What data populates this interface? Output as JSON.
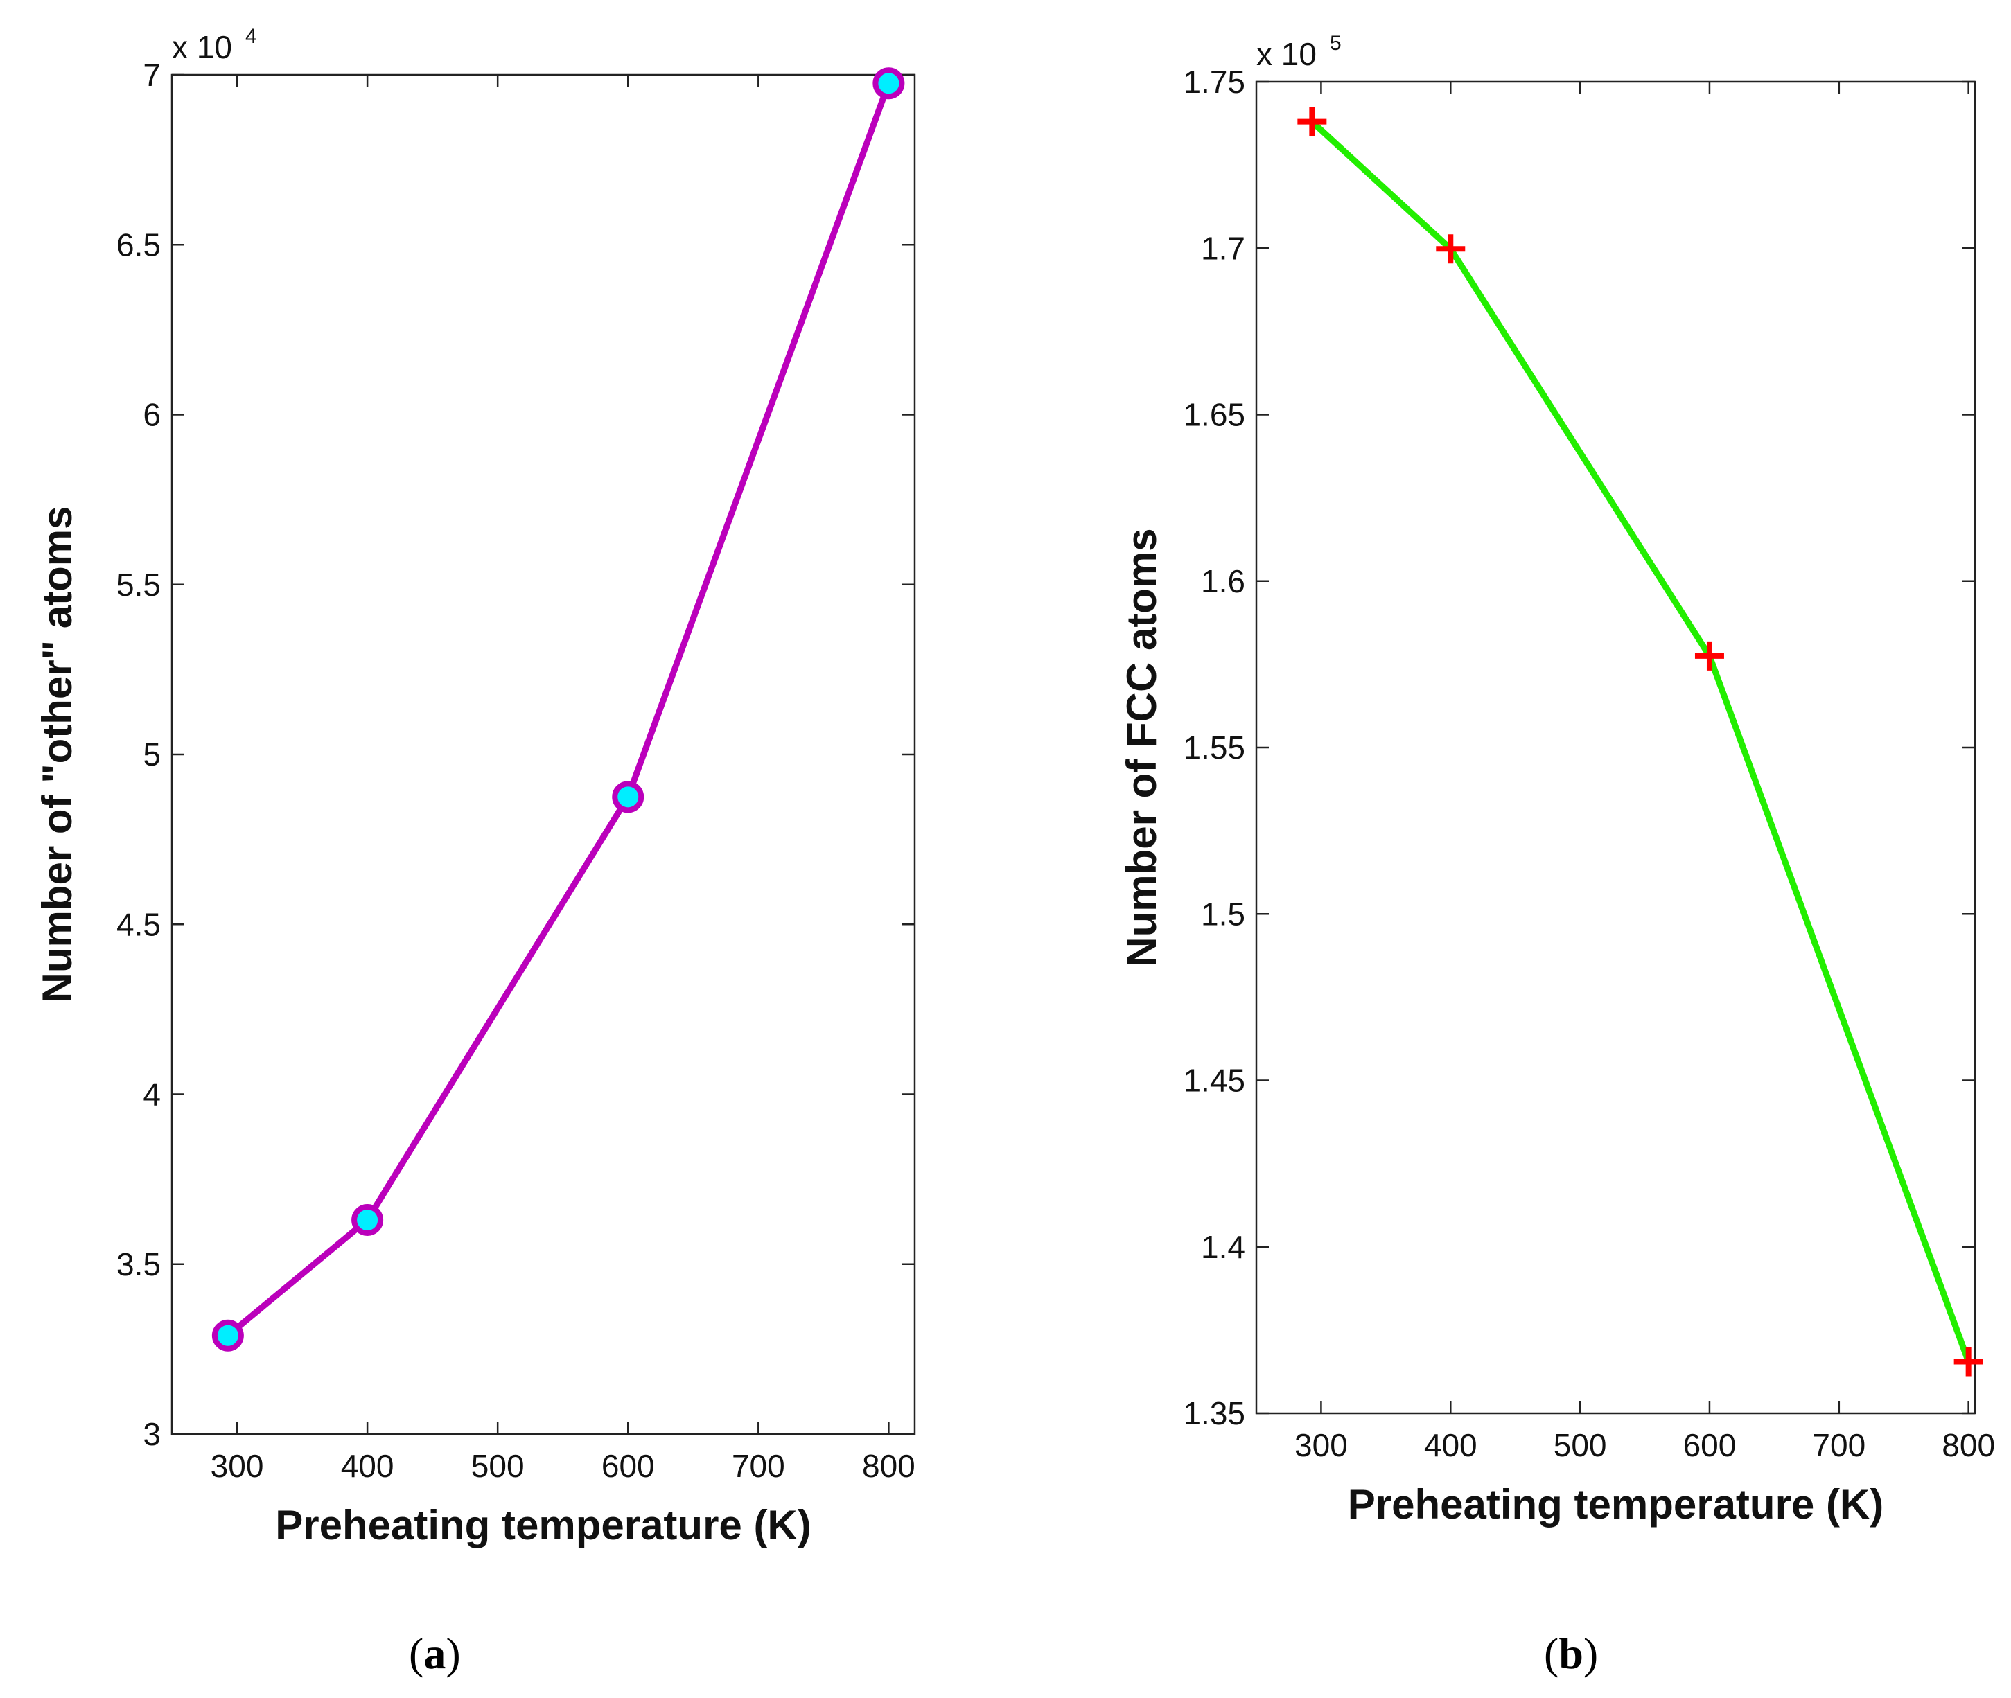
{
  "chart_data": [
    {
      "type": "line",
      "panel_label": "a",
      "title": "",
      "xlabel": "Preheating temperature (K)",
      "ylabel": "Number of \"other\" atoms",
      "x_ticks": [
        300,
        400,
        500,
        600,
        700,
        800
      ],
      "y_ticks": [
        3,
        3.5,
        4,
        4.5,
        5,
        5.5,
        6,
        6.5,
        7
      ],
      "y_tick_labels": [
        "3",
        "3.5",
        "4",
        "4.5",
        "5",
        "5.5",
        "6",
        "6.5",
        "7"
      ],
      "xlim": [
        250,
        820
      ],
      "ylim": [
        3,
        7
      ],
      "y_exponent_base": "x 10",
      "y_exponent_power": "4",
      "grid": false,
      "series": [
        {
          "name": "other atoms",
          "x": [
            293,
            400,
            600,
            800
          ],
          "y": [
            3.29,
            3.63,
            4.875,
            6.975
          ],
          "line_color": "#bb00bb",
          "marker": "circle",
          "marker_fill": "#00eeff",
          "marker_edge": "#bb00bb"
        }
      ]
    },
    {
      "type": "line",
      "panel_label": "b",
      "title": "",
      "xlabel": "Preheating temperature (K)",
      "ylabel": "Number of FCC atoms",
      "x_ticks": [
        300,
        400,
        500,
        600,
        700,
        800
      ],
      "y_ticks": [
        1.35,
        1.4,
        1.45,
        1.5,
        1.55,
        1.6,
        1.65,
        1.7,
        1.75
      ],
      "y_tick_labels": [
        "1.35",
        "1.4",
        "1.45",
        "1.5",
        "1.55",
        "1.6",
        "1.65",
        "1.7",
        "1.75"
      ],
      "xlim": [
        250,
        805
      ],
      "ylim": [
        1.35,
        1.75
      ],
      "y_exponent_base": "x 10",
      "y_exponent_power": "5",
      "grid": false,
      "series": [
        {
          "name": "FCC atoms",
          "x": [
            293,
            400,
            600,
            800
          ],
          "y": [
            1.738,
            1.6998,
            1.5775,
            1.3655
          ],
          "line_color": "#22ee00",
          "marker": "plus",
          "marker_color": "#ff0000"
        }
      ]
    }
  ],
  "captions": [
    {
      "open": "(",
      "letter": "a",
      "close": ")"
    },
    {
      "open": "(",
      "letter": "b",
      "close": ")"
    }
  ]
}
